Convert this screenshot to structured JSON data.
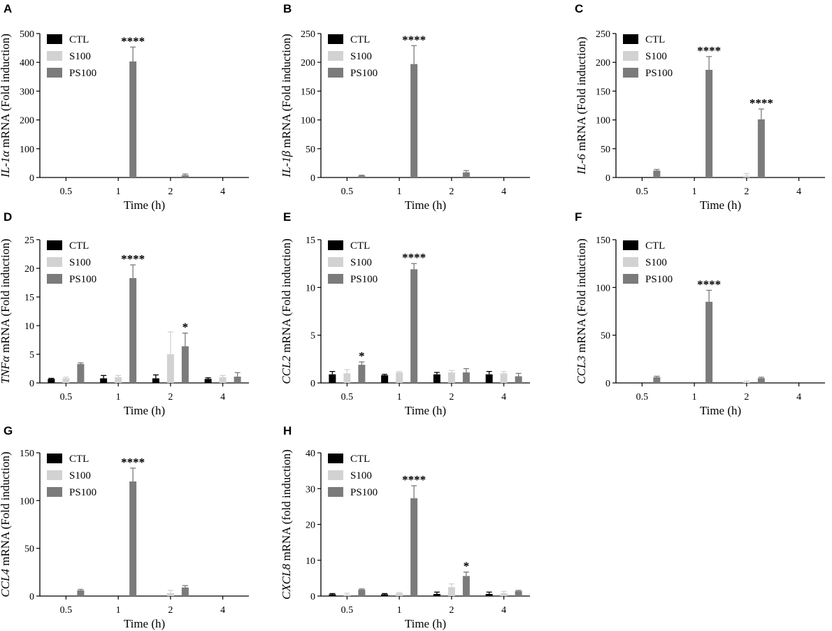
{
  "colors": {
    "CTL": "#000000",
    "S100": "#d2d2d2",
    "PS100": "#7b7b7b"
  },
  "chart_data": [
    {
      "type": "bar",
      "panel": "A",
      "gene": "IL-1α",
      "ylabel_suffix": "mRNA (Fold induction)",
      "xlabel": "Time (h)",
      "categories": [
        "0.5",
        "1",
        "2",
        "4"
      ],
      "ylim": [
        0,
        500
      ],
      "yticks": [
        0,
        100,
        200,
        300,
        400,
        500
      ],
      "legend": [
        "CTL",
        "S100",
        "PS100"
      ],
      "series": [
        {
          "name": "CTL",
          "values": [
            0,
            0,
            0,
            0
          ],
          "errors": [
            0,
            0,
            0,
            0
          ]
        },
        {
          "name": "S100",
          "values": [
            0,
            0,
            0,
            0
          ],
          "errors": [
            0,
            0,
            0,
            0
          ]
        },
        {
          "name": "PS100",
          "values": [
            0,
            403,
            8,
            0
          ],
          "errors": [
            0,
            50,
            4,
            0
          ]
        }
      ],
      "annotations": [
        {
          "series": "PS100",
          "category": "1",
          "text": "****"
        }
      ]
    },
    {
      "type": "bar",
      "panel": "B",
      "gene": "IL-1β",
      "ylabel_suffix": "mRNA (Fold induction)",
      "xlabel": "Time (h)",
      "categories": [
        "0.5",
        "1",
        "2",
        "4"
      ],
      "ylim": [
        0,
        250
      ],
      "yticks": [
        0,
        50,
        100,
        150,
        200,
        250
      ],
      "legend": [
        "CTL",
        "S100",
        "PS100"
      ],
      "series": [
        {
          "name": "CTL",
          "values": [
            0,
            0,
            0,
            0
          ],
          "errors": [
            0,
            0,
            0,
            0
          ]
        },
        {
          "name": "S100",
          "values": [
            0,
            0,
            0,
            0
          ],
          "errors": [
            0,
            0,
            0,
            0
          ]
        },
        {
          "name": "PS100",
          "values": [
            3,
            197,
            9,
            0
          ],
          "errors": [
            1,
            32,
            3,
            0
          ]
        }
      ],
      "annotations": [
        {
          "series": "PS100",
          "category": "1",
          "text": "****"
        }
      ]
    },
    {
      "type": "bar",
      "panel": "C",
      "gene": "IL-6",
      "ylabel_suffix": "mRNA (Fold induction)",
      "xlabel": "Time (h)",
      "categories": [
        "0.5",
        "1",
        "2",
        "4"
      ],
      "ylim": [
        0,
        250
      ],
      "yticks": [
        0,
        50,
        100,
        150,
        200,
        250
      ],
      "legend": [
        "CTL",
        "S100",
        "PS100"
      ],
      "series": [
        {
          "name": "CTL",
          "values": [
            0,
            0,
            0,
            0
          ],
          "errors": [
            0,
            0,
            0,
            0
          ]
        },
        {
          "name": "S100",
          "values": [
            0,
            0,
            3,
            0
          ],
          "errors": [
            0,
            0,
            4,
            0
          ]
        },
        {
          "name": "PS100",
          "values": [
            12,
            187,
            101,
            0
          ],
          "errors": [
            2,
            23,
            18,
            0
          ]
        }
      ],
      "annotations": [
        {
          "series": "PS100",
          "category": "1",
          "text": "****"
        },
        {
          "series": "PS100",
          "category": "2",
          "text": "****"
        }
      ]
    },
    {
      "type": "bar",
      "panel": "D",
      "gene": "TNFα",
      "ylabel_suffix": "mRNA (Fold induction)",
      "xlabel": "Time (h)",
      "categories": [
        "0.5",
        "1",
        "2",
        "4"
      ],
      "ylim": [
        0,
        25
      ],
      "yticks": [
        0,
        5,
        10,
        15,
        20,
        25
      ],
      "legend": [
        "CTL",
        "S100",
        "PS100"
      ],
      "series": [
        {
          "name": "CTL",
          "values": [
            0.7,
            0.8,
            0.8,
            0.7
          ],
          "errors": [
            0.1,
            0.5,
            0.6,
            0.2
          ]
        },
        {
          "name": "S100",
          "values": [
            0.8,
            1.0,
            5.0,
            1.0
          ],
          "errors": [
            0.2,
            0.3,
            3.9,
            0.3
          ]
        },
        {
          "name": "PS100",
          "values": [
            3.3,
            18.3,
            6.4,
            1.1
          ],
          "errors": [
            0.2,
            2.3,
            2.3,
            0.7
          ]
        }
      ],
      "annotations": [
        {
          "series": "PS100",
          "category": "1",
          "text": "****"
        },
        {
          "series": "PS100",
          "category": "2",
          "text": "*"
        }
      ]
    },
    {
      "type": "bar",
      "panel": "E",
      "gene": "CCL2",
      "ylabel_suffix": "mRNA (Fold induction)",
      "xlabel": "Time (h)",
      "categories": [
        "0.5",
        "1",
        "2",
        "4"
      ],
      "ylim": [
        0,
        15
      ],
      "yticks": [
        0,
        5,
        10,
        15
      ],
      "legend": [
        "CTL",
        "S100",
        "PS100"
      ],
      "series": [
        {
          "name": "CTL",
          "values": [
            0.9,
            0.8,
            0.9,
            0.9
          ],
          "errors": [
            0.3,
            0.1,
            0.2,
            0.3
          ]
        },
        {
          "name": "S100",
          "values": [
            1.0,
            1.1,
            1.1,
            1.0
          ],
          "errors": [
            0.4,
            0.1,
            0.2,
            0.2
          ]
        },
        {
          "name": "PS100",
          "values": [
            1.9,
            11.9,
            1.1,
            0.7
          ],
          "errors": [
            0.3,
            0.6,
            0.4,
            0.3
          ]
        }
      ],
      "annotations": [
        {
          "series": "PS100",
          "category": "0.5",
          "text": "*"
        },
        {
          "series": "PS100",
          "category": "1",
          "text": "****"
        }
      ]
    },
    {
      "type": "bar",
      "panel": "F",
      "gene": "CCL3",
      "ylabel_suffix": "mRNA (Fold induction)",
      "xlabel": "Time (h)",
      "categories": [
        "0.5",
        "1",
        "2",
        "4"
      ],
      "ylim": [
        0,
        150
      ],
      "yticks": [
        0,
        50,
        100,
        150
      ],
      "legend": [
        "CTL",
        "S100",
        "PS100"
      ],
      "series": [
        {
          "name": "CTL",
          "values": [
            0,
            0,
            0,
            0
          ],
          "errors": [
            0,
            0,
            0,
            0
          ]
        },
        {
          "name": "S100",
          "values": [
            0,
            0,
            1,
            0
          ],
          "errors": [
            0,
            0,
            1,
            0
          ]
        },
        {
          "name": "PS100",
          "values": [
            6,
            85,
            5,
            0
          ],
          "errors": [
            1,
            12,
            1,
            0
          ]
        }
      ],
      "annotations": [
        {
          "series": "PS100",
          "category": "1",
          "text": "****"
        }
      ]
    },
    {
      "type": "bar",
      "panel": "G",
      "gene": "CCL4",
      "ylabel_suffix": "mRNA (Fold induction)",
      "xlabel": "Time (h)",
      "categories": [
        "0.5",
        "1",
        "2",
        "4"
      ],
      "ylim": [
        0,
        150
      ],
      "yticks": [
        0,
        50,
        100,
        150
      ],
      "legend": [
        "CTL",
        "S100",
        "PS100"
      ],
      "series": [
        {
          "name": "CTL",
          "values": [
            0,
            0,
            0,
            0
          ],
          "errors": [
            0,
            0,
            0,
            0
          ]
        },
        {
          "name": "S100",
          "values": [
            0,
            0,
            3,
            0
          ],
          "errors": [
            0,
            0,
            3,
            0
          ]
        },
        {
          "name": "PS100",
          "values": [
            6,
            120,
            9,
            0
          ],
          "errors": [
            1,
            14,
            2,
            0
          ]
        }
      ],
      "annotations": [
        {
          "series": "PS100",
          "category": "1",
          "text": "****"
        }
      ]
    },
    {
      "type": "bar",
      "panel": "H",
      "gene": "CXCL8",
      "ylabel_suffix": "mRNA (fold induction)",
      "xlabel": "Time (h)",
      "categories": [
        "0.5",
        "1",
        "2",
        "4"
      ],
      "ylim": [
        0,
        40
      ],
      "yticks": [
        0,
        10,
        20,
        30,
        40
      ],
      "legend": [
        "CTL",
        "S100",
        "PS100"
      ],
      "series": [
        {
          "name": "CTL",
          "values": [
            0.5,
            0.5,
            0.6,
            0.6
          ],
          "errors": [
            0.2,
            0.2,
            0.5,
            0.5
          ]
        },
        {
          "name": "S100",
          "values": [
            0.4,
            0.8,
            2.5,
            0.8
          ],
          "errors": [
            0.4,
            0.2,
            0.9,
            0.5
          ]
        },
        {
          "name": "PS100",
          "values": [
            1.8,
            27.3,
            5.6,
            1.4
          ],
          "errors": [
            0.2,
            3.5,
            1.1,
            0.2
          ]
        }
      ],
      "annotations": [
        {
          "series": "PS100",
          "category": "1",
          "text": "****"
        },
        {
          "series": "PS100",
          "category": "2",
          "text": "*"
        }
      ]
    }
  ]
}
